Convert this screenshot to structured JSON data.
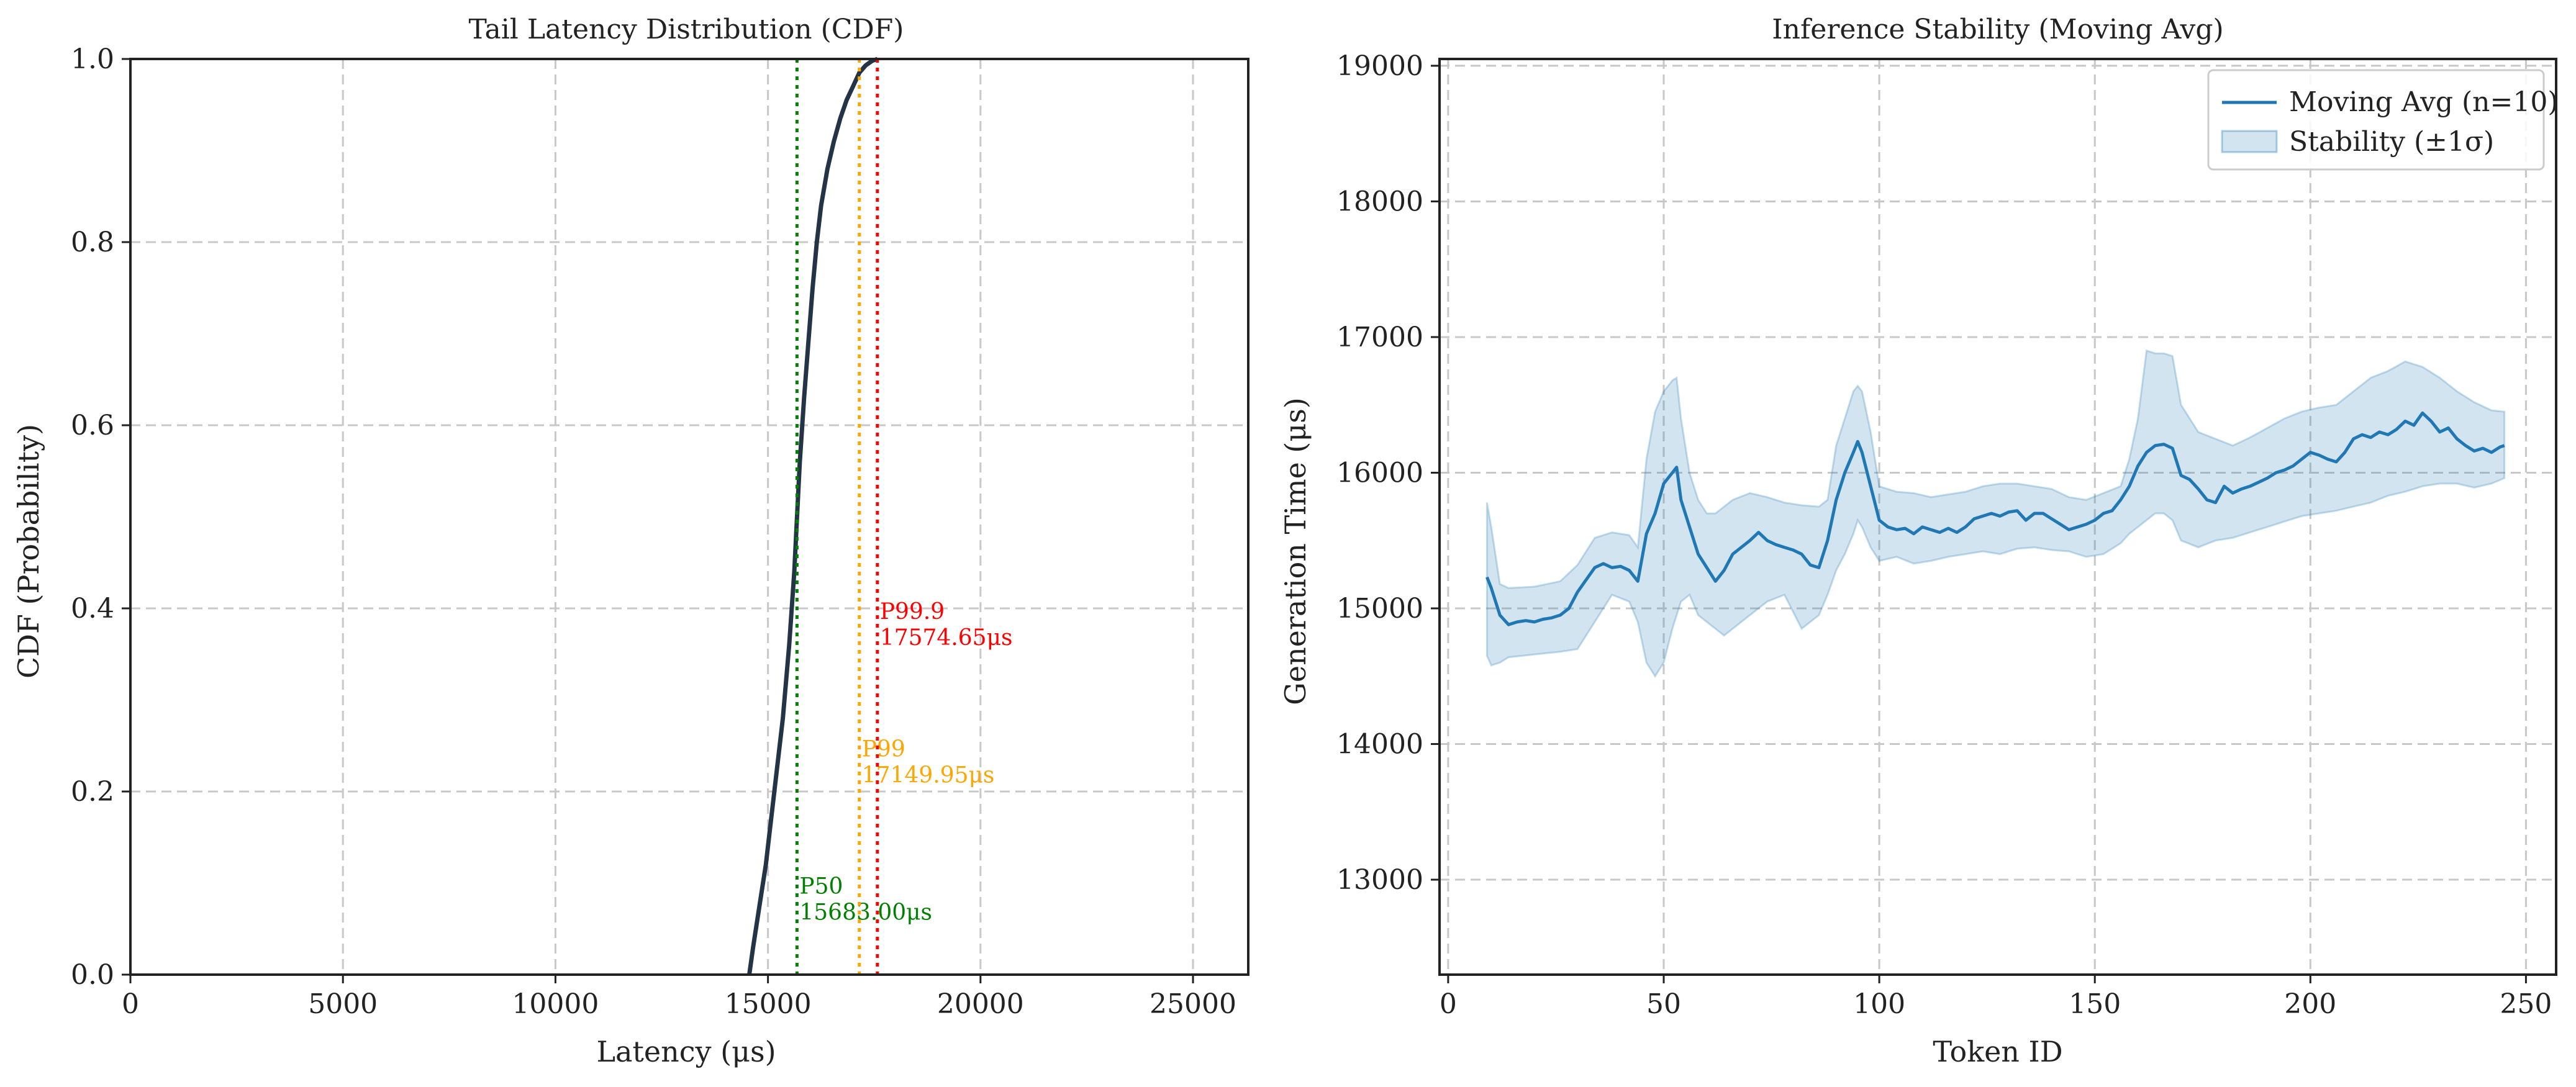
{
  "chart_data": [
    {
      "type": "line",
      "title": "Tail Latency Distribution (CDF)",
      "xlabel": "Latency (μs)",
      "ylabel": "CDF (Probability)",
      "xlim": [
        0,
        26300
      ],
      "ylim": [
        0,
        1.0
      ],
      "xticks": [
        0,
        5000,
        10000,
        15000,
        20000,
        25000
      ],
      "xtick_labels": [
        "0",
        "5000",
        "10000",
        "15000",
        "20000",
        "25000"
      ],
      "yticks": [
        0.0,
        0.2,
        0.4,
        0.6,
        0.8,
        1.0
      ],
      "ytick_labels": [
        "0.0",
        "0.2",
        "0.4",
        "0.6",
        "0.8",
        "1.0"
      ],
      "grid": true,
      "series": [
        {
          "color": "#243447",
          "x": [
            14560,
            14650,
            14750,
            14850,
            14950,
            15050,
            15200,
            15350,
            15500,
            15620,
            15683,
            15750,
            15850,
            15950,
            16050,
            16150,
            16250,
            16400,
            16550,
            16700,
            16850,
            17000,
            17150,
            17300,
            17450,
            17575
          ],
          "y": [
            0.0,
            0.03,
            0.06,
            0.09,
            0.12,
            0.16,
            0.22,
            0.28,
            0.36,
            0.44,
            0.5,
            0.56,
            0.63,
            0.69,
            0.75,
            0.8,
            0.84,
            0.88,
            0.91,
            0.935,
            0.955,
            0.97,
            0.985,
            0.993,
            0.998,
            1.0
          ]
        }
      ],
      "percentiles": [
        {
          "name": "P50",
          "value": 15683.0,
          "label": "P50",
          "value_label": "15683.00μs",
          "color": "#008000",
          "label_y": 0.06
        },
        {
          "name": "P99",
          "value": 17149.95,
          "label": "P99",
          "value_label": "17149.95μs",
          "color": "#FFA500",
          "label_y": 0.21
        },
        {
          "name": "P99.9",
          "value": 17574.65,
          "label": "P99.9",
          "value_label": "17574.65μs",
          "color": "#FF0000",
          "label_y": 0.36
        }
      ]
    },
    {
      "type": "line",
      "title": "Inference Stability (Moving Avg)",
      "xlabel": "Token ID",
      "ylabel": "Generation Time (μs)",
      "xlim": [
        -2,
        257
      ],
      "ylim": [
        12300,
        19050
      ],
      "xticks": [
        0,
        50,
        100,
        150,
        200,
        250
      ],
      "xtick_labels": [
        "0",
        "50",
        "100",
        "150",
        "200",
        "250"
      ],
      "yticks": [
        13000,
        14000,
        15000,
        16000,
        17000,
        18000,
        19000
      ],
      "ytick_labels": [
        "13000",
        "14000",
        "15000",
        "16000",
        "17000",
        "18000",
        "19000"
      ],
      "grid": true,
      "legend_position": "top-right",
      "series": [
        {
          "name": "Moving Avg (n=10)",
          "color": "#1f77b4",
          "x": [
            9,
            10,
            12,
            14,
            16,
            18,
            20,
            22,
            24,
            26,
            28,
            30,
            32,
            34,
            36,
            38,
            40,
            42,
            44,
            46,
            48,
            50,
            52,
            53,
            54,
            56,
            58,
            60,
            62,
            64,
            66,
            68,
            70,
            72,
            74,
            76,
            78,
            80,
            82,
            84,
            86,
            88,
            90,
            92,
            94,
            95,
            96,
            98,
            100,
            102,
            104,
            106,
            108,
            110,
            112,
            114,
            116,
            118,
            120,
            122,
            124,
            126,
            128,
            130,
            132,
            134,
            136,
            138,
            140,
            142,
            144,
            146,
            148,
            150,
            152,
            154,
            156,
            158,
            160,
            162,
            164,
            166,
            168,
            170,
            172,
            174,
            176,
            178,
            180,
            182,
            184,
            186,
            188,
            190,
            192,
            194,
            196,
            198,
            200,
            202,
            204,
            206,
            208,
            210,
            212,
            214,
            216,
            218,
            220,
            222,
            224,
            226,
            228,
            230,
            232,
            234,
            236,
            238,
            240,
            242,
            244,
            245
          ],
          "y": [
            15230,
            15150,
            14950,
            14880,
            14900,
            14910,
            14900,
            14920,
            14930,
            14950,
            15000,
            15120,
            15210,
            15300,
            15330,
            15300,
            15310,
            15280,
            15200,
            15550,
            15700,
            15920,
            16000,
            16040,
            15800,
            15600,
            15400,
            15300,
            15200,
            15280,
            15400,
            15450,
            15500,
            15560,
            15500,
            15470,
            15450,
            15430,
            15400,
            15320,
            15300,
            15500,
            15800,
            16000,
            16150,
            16230,
            16150,
            15900,
            15650,
            15600,
            15580,
            15590,
            15550,
            15600,
            15580,
            15560,
            15590,
            15560,
            15600,
            15660,
            15680,
            15700,
            15680,
            15710,
            15720,
            15650,
            15700,
            15700,
            15660,
            15620,
            15580,
            15600,
            15620,
            15650,
            15700,
            15720,
            15800,
            15900,
            16050,
            16150,
            16200,
            16210,
            16180,
            15980,
            15950,
            15880,
            15800,
            15780,
            15900,
            15850,
            15880,
            15900,
            15930,
            15960,
            16000,
            16020,
            16050,
            16100,
            16150,
            16130,
            16100,
            16080,
            16150,
            16250,
            16280,
            16260,
            16300,
            16280,
            16320,
            16380,
            16350,
            16440,
            16380,
            16300,
            16330,
            16250,
            16200,
            16160,
            16180,
            16150,
            16190,
            16200
          ]
        },
        {
          "name": "Stability (±1σ)",
          "color": "#1f77b4",
          "fill_opacity": 0.2,
          "x": [
            9,
            10,
            12,
            14,
            20,
            26,
            30,
            34,
            38,
            42,
            44,
            46,
            48,
            50,
            52,
            53,
            54,
            56,
            58,
            60,
            62,
            64,
            66,
            70,
            74,
            78,
            82,
            86,
            88,
            90,
            92,
            94,
            95,
            96,
            98,
            100,
            104,
            108,
            112,
            116,
            120,
            124,
            128,
            132,
            136,
            140,
            144,
            148,
            152,
            156,
            158,
            160,
            162,
            164,
            166,
            168,
            170,
            174,
            178,
            182,
            186,
            190,
            194,
            198,
            202,
            206,
            210,
            214,
            218,
            222,
            224,
            226,
            230,
            234,
            238,
            242,
            245
          ],
          "upper": [
            15780,
            15600,
            15180,
            15150,
            15160,
            15200,
            15320,
            15520,
            15560,
            15540,
            15450,
            16100,
            16450,
            16600,
            16680,
            16700,
            16400,
            16000,
            15800,
            15700,
            15700,
            15750,
            15800,
            15850,
            15820,
            15780,
            15760,
            15750,
            15800,
            16200,
            16400,
            16600,
            16640,
            16600,
            16300,
            15900,
            15860,
            15850,
            15820,
            15840,
            15860,
            15900,
            15920,
            15920,
            15900,
            15880,
            15820,
            15800,
            15850,
            15900,
            16100,
            16400,
            16900,
            16880,
            16880,
            16860,
            16500,
            16300,
            16250,
            16200,
            16260,
            16330,
            16400,
            16450,
            16480,
            16500,
            16600,
            16700,
            16750,
            16820,
            16800,
            16780,
            16700,
            16600,
            16520,
            16460,
            16450
          ],
          "lower": [
            14650,
            14580,
            14600,
            14640,
            14660,
            14680,
            14700,
            14900,
            15100,
            15050,
            14900,
            14600,
            14500,
            14600,
            14850,
            14950,
            15050,
            15100,
            14950,
            14900,
            14850,
            14800,
            14850,
            14950,
            15050,
            15100,
            14850,
            14950,
            15100,
            15280,
            15400,
            15550,
            15650,
            15600,
            15450,
            15350,
            15380,
            15330,
            15350,
            15380,
            15400,
            15420,
            15400,
            15440,
            15450,
            15430,
            15420,
            15380,
            15400,
            15480,
            15550,
            15600,
            15650,
            15700,
            15700,
            15650,
            15500,
            15450,
            15500,
            15520,
            15560,
            15600,
            15640,
            15680,
            15700,
            15720,
            15750,
            15780,
            15830,
            15860,
            15880,
            15900,
            15920,
            15920,
            15890,
            15920,
            15960
          ]
        }
      ]
    }
  ]
}
